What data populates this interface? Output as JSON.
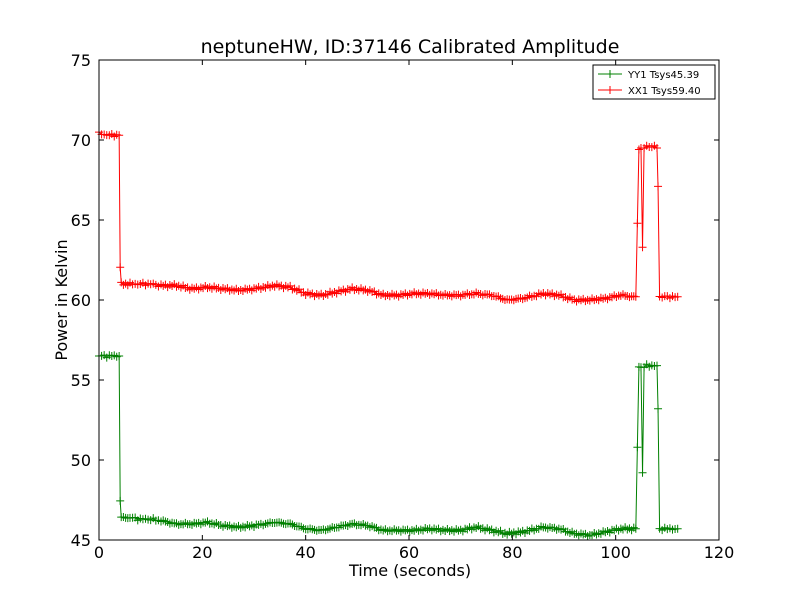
{
  "chart_data": {
    "type": "line",
    "title": "neptuneHW, ID:37146 Calibrated Amplitude",
    "xlabel": "Time (seconds)",
    "ylabel": "Power in Kelvin",
    "xlim": [
      0,
      120
    ],
    "ylim": [
      45,
      75
    ],
    "xticks": [
      0,
      20,
      40,
      60,
      80,
      100,
      120
    ],
    "yticks": [
      45,
      50,
      55,
      60,
      65,
      70,
      75
    ],
    "grid": false,
    "legend_position": "top-right",
    "marker": "+",
    "series": [
      {
        "name": "YY1 Tsys45.39",
        "color": "#008000",
        "points": [
          [
            0,
            56.5
          ],
          [
            2,
            56.5
          ],
          [
            3.9,
            56.5
          ],
          [
            4.1,
            47.5
          ],
          [
            4.3,
            46.4
          ],
          [
            6,
            46.4
          ],
          [
            8,
            46.3
          ],
          [
            10,
            46.3
          ],
          [
            12,
            46.2
          ],
          [
            15,
            46.0
          ],
          [
            18,
            46.0
          ],
          [
            21,
            46.1
          ],
          [
            24,
            45.9
          ],
          [
            27,
            45.8
          ],
          [
            30,
            45.9
          ],
          [
            34,
            46.1
          ],
          [
            37,
            46.0
          ],
          [
            40,
            45.7
          ],
          [
            43,
            45.6
          ],
          [
            46,
            45.8
          ],
          [
            49,
            46.0
          ],
          [
            52,
            45.9
          ],
          [
            55,
            45.6
          ],
          [
            58,
            45.6
          ],
          [
            61,
            45.6
          ],
          [
            64,
            45.7
          ],
          [
            67,
            45.6
          ],
          [
            70,
            45.6
          ],
          [
            73,
            45.8
          ],
          [
            76,
            45.6
          ],
          [
            79,
            45.4
          ],
          [
            82,
            45.5
          ],
          [
            86,
            45.8
          ],
          [
            89,
            45.7
          ],
          [
            92,
            45.4
          ],
          [
            95,
            45.3
          ],
          [
            98,
            45.5
          ],
          [
            101,
            45.7
          ],
          [
            103.5,
            45.7
          ],
          [
            103.9,
            45.7
          ],
          [
            104.2,
            50.8
          ],
          [
            104.5,
            55.8
          ],
          [
            104.9,
            55.8
          ],
          [
            105.2,
            49.2
          ],
          [
            105.5,
            55.8
          ],
          [
            106,
            55.9
          ],
          [
            107,
            55.9
          ],
          [
            108,
            55.9
          ],
          [
            108.2,
            53.2
          ],
          [
            108.5,
            45.7
          ],
          [
            110,
            45.7
          ],
          [
            112,
            45.7
          ]
        ]
      },
      {
        "name": "XX1 Tsys59.40",
        "color": "#ff0000",
        "points": [
          [
            0,
            70.4
          ],
          [
            2,
            70.3
          ],
          [
            3.9,
            70.3
          ],
          [
            4.1,
            62.0
          ],
          [
            4.3,
            61.0
          ],
          [
            6,
            61.0
          ],
          [
            8,
            61.0
          ],
          [
            10,
            61.0
          ],
          [
            12,
            60.9
          ],
          [
            15,
            60.9
          ],
          [
            18,
            60.7
          ],
          [
            21,
            60.8
          ],
          [
            24,
            60.7
          ],
          [
            27,
            60.6
          ],
          [
            30,
            60.7
          ],
          [
            34,
            60.9
          ],
          [
            37,
            60.8
          ],
          [
            40,
            60.4
          ],
          [
            43,
            60.3
          ],
          [
            46,
            60.5
          ],
          [
            49,
            60.7
          ],
          [
            52,
            60.6
          ],
          [
            55,
            60.3
          ],
          [
            58,
            60.3
          ],
          [
            61,
            60.4
          ],
          [
            64,
            60.4
          ],
          [
            67,
            60.3
          ],
          [
            70,
            60.3
          ],
          [
            73,
            60.4
          ],
          [
            76,
            60.3
          ],
          [
            79,
            60.0
          ],
          [
            82,
            60.1
          ],
          [
            86,
            60.4
          ],
          [
            89,
            60.3
          ],
          [
            92,
            60.0
          ],
          [
            95,
            60.0
          ],
          [
            98,
            60.1
          ],
          [
            101,
            60.3
          ],
          [
            103.5,
            60.2
          ],
          [
            103.9,
            60.2
          ],
          [
            104.2,
            64.8
          ],
          [
            104.5,
            69.5
          ],
          [
            104.9,
            69.5
          ],
          [
            105.2,
            63.3
          ],
          [
            105.5,
            69.5
          ],
          [
            106,
            69.6
          ],
          [
            107,
            69.6
          ],
          [
            108,
            69.5
          ],
          [
            108.2,
            67.1
          ],
          [
            108.5,
            60.2
          ],
          [
            110,
            60.2
          ],
          [
            112,
            60.2
          ]
        ]
      }
    ]
  }
}
